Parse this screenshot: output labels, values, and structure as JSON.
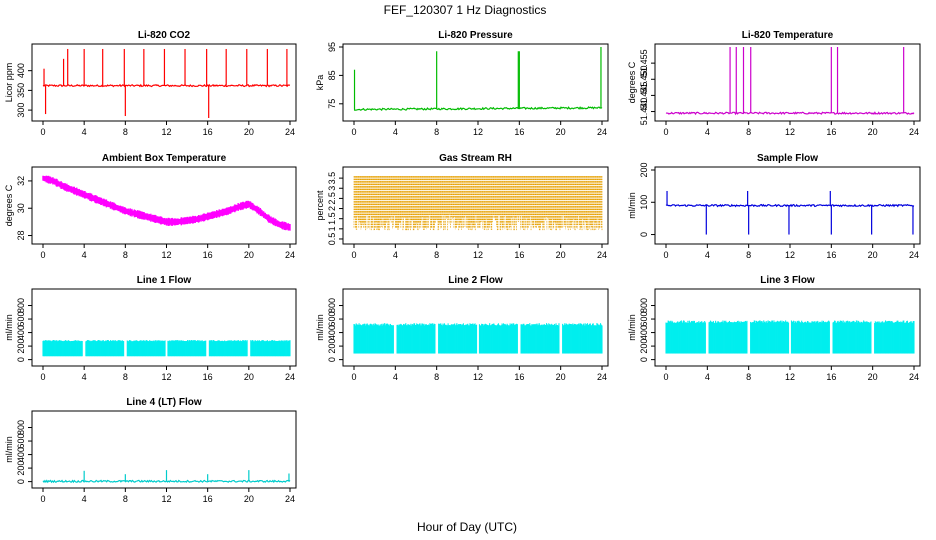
{
  "figure": {
    "title": "FEF_120307  1 Hz Diagnostics",
    "xlabel": "Hour of Day (UTC)"
  },
  "chart_data": [
    {
      "type": "line",
      "title": "Li-820 CO2",
      "ylabel": "Licor ppm",
      "color": "#ff0000",
      "xlim": [
        0,
        24
      ],
      "ylim": [
        280,
        460
      ],
      "xticks": [
        0,
        4,
        8,
        12,
        16,
        20,
        24
      ],
      "yticks": [
        300,
        350,
        400
      ],
      "baseline": 362,
      "spikes": [
        {
          "x": 0.1,
          "y": 405
        },
        {
          "x": 0.25,
          "y": 290
        },
        {
          "x": 2.0,
          "y": 430
        },
        {
          "x": 2.4,
          "y": 455
        },
        {
          "x": 4.0,
          "y": 455
        },
        {
          "x": 5.8,
          "y": 455
        },
        {
          "x": 7.9,
          "y": 455
        },
        {
          "x": 8.0,
          "y": 285
        },
        {
          "x": 9.8,
          "y": 455
        },
        {
          "x": 11.8,
          "y": 455
        },
        {
          "x": 13.8,
          "y": 455
        },
        {
          "x": 15.9,
          "y": 455
        },
        {
          "x": 16.1,
          "y": 280
        },
        {
          "x": 17.8,
          "y": 455
        },
        {
          "x": 19.8,
          "y": 455
        },
        {
          "x": 21.8,
          "y": 455
        },
        {
          "x": 23.7,
          "y": 455
        }
      ]
    },
    {
      "type": "line",
      "title": "Li-820 Pressure",
      "ylabel": "kPa",
      "color": "#00bb00",
      "xlim": [
        0,
        24
      ],
      "ylim": [
        70,
        95
      ],
      "xticks": [
        0,
        4,
        8,
        12,
        16,
        20,
        24
      ],
      "yticks": [
        75,
        85,
        95
      ],
      "baseline_start": 73.0,
      "baseline_end": 73.6,
      "spikes": [
        {
          "x": 0.05,
          "y": 87
        },
        {
          "x": 8.0,
          "y": 93.5
        },
        {
          "x": 15.9,
          "y": 93.5
        },
        {
          "x": 16.0,
          "y": 93.5
        },
        {
          "x": 23.9,
          "y": 95
        }
      ]
    },
    {
      "type": "line",
      "title": "Li-820 Temperature",
      "ylabel": "degrees C",
      "color": "#cc00cc",
      "xlim": [
        0,
        24
      ],
      "ylim": [
        51.438,
        51.46
      ],
      "xticks": [
        0,
        4,
        8,
        12,
        16,
        20,
        24
      ],
      "yticks": [
        51.44,
        51.445,
        51.45,
        51.455
      ],
      "ytick_labels": [
        "51.440",
        "51.445",
        "51.450",
        "51.455"
      ],
      "baseline": 51.4395,
      "spikes": [
        {
          "x": 6.2,
          "y": 51.46
        },
        {
          "x": 6.8,
          "y": 51.46
        },
        {
          "x": 7.5,
          "y": 51.46
        },
        {
          "x": 8.2,
          "y": 51.46
        },
        {
          "x": 16.0,
          "y": 51.46
        },
        {
          "x": 16.6,
          "y": 51.46
        },
        {
          "x": 23.0,
          "y": 51.46
        }
      ]
    },
    {
      "type": "band",
      "title": "Ambient Box Temperature",
      "ylabel": "degrees C",
      "color": "#ff00ff",
      "xlim": [
        0,
        24
      ],
      "ylim": [
        27.6,
        32.8
      ],
      "xticks": [
        0,
        4,
        8,
        12,
        16,
        20,
        24
      ],
      "yticks": [
        28,
        30,
        32
      ],
      "x": [
        0,
        1,
        2,
        3,
        4,
        5,
        6,
        7,
        8,
        9,
        10,
        11,
        12,
        13,
        14,
        15,
        16,
        17,
        18,
        19,
        20,
        21,
        22,
        23,
        24
      ],
      "y": [
        32.2,
        32.0,
        31.6,
        31.3,
        31.0,
        30.7,
        30.4,
        30.1,
        29.8,
        29.6,
        29.4,
        29.2,
        29.0,
        29.0,
        29.1,
        29.2,
        29.4,
        29.6,
        29.8,
        30.1,
        30.3,
        29.8,
        29.2,
        28.8,
        28.6
      ],
      "band_half_width": 0.3
    },
    {
      "type": "band",
      "title": "Gas Stream RH",
      "ylabel": "percent",
      "color": "#e6a000",
      "xlim": [
        0,
        24
      ],
      "ylim": [
        0.4,
        3.9
      ],
      "xticks": [
        0,
        4,
        8,
        12,
        16,
        20,
        24
      ],
      "yticks": [
        0.5,
        1.0,
        1.5,
        2.0,
        2.5,
        3.0,
        3.5
      ],
      "upper": 3.6,
      "lower": 0.9,
      "dense": true
    },
    {
      "type": "line",
      "title": "Sample Flow",
      "ylabel": "ml/min",
      "color": "#0000dd",
      "xlim": [
        0,
        24
      ],
      "ylim": [
        -20,
        200
      ],
      "xticks": [
        0,
        4,
        8,
        12,
        16,
        20,
        24
      ],
      "yticks": [
        0,
        100,
        200
      ],
      "baseline": 90,
      "spikes": [
        {
          "x": 0.1,
          "y": 135
        },
        {
          "x": 3.9,
          "y": 0
        },
        {
          "x": 7.9,
          "y": 135
        },
        {
          "x": 8.0,
          "y": 0
        },
        {
          "x": 11.9,
          "y": 0
        },
        {
          "x": 15.9,
          "y": 135
        },
        {
          "x": 16.0,
          "y": 0
        },
        {
          "x": 19.9,
          "y": 0
        },
        {
          "x": 23.9,
          "y": 0
        }
      ]
    },
    {
      "type": "band",
      "title": "Line 1 Flow",
      "ylabel": "ml/min",
      "color": "#00eeee",
      "xlim": [
        0,
        24
      ],
      "ylim": [
        -50,
        1000
      ],
      "xticks": [
        0,
        4,
        8,
        12,
        16,
        20,
        24
      ],
      "yticks": [
        0,
        200,
        400,
        600,
        800
      ],
      "upper": 290,
      "lower": 50,
      "gaps": [
        4,
        8,
        12,
        16,
        20
      ]
    },
    {
      "type": "band",
      "title": "Line 2 Flow",
      "ylabel": "ml/min",
      "color": "#00eeee",
      "xlim": [
        0,
        24
      ],
      "ylim": [
        -50,
        1000
      ],
      "xticks": [
        0,
        4,
        8,
        12,
        16,
        20,
        24
      ],
      "yticks": [
        0,
        200,
        400,
        600,
        800
      ],
      "upper": 540,
      "lower": 90,
      "gaps": [
        4,
        8,
        12,
        16,
        20
      ]
    },
    {
      "type": "band",
      "title": "Line 3 Flow",
      "ylabel": "ml/min",
      "color": "#00eeee",
      "xlim": [
        0,
        24
      ],
      "ylim": [
        -50,
        1000
      ],
      "xticks": [
        0,
        4,
        8,
        12,
        16,
        20,
        24
      ],
      "yticks": [
        0,
        200,
        400,
        600,
        800
      ],
      "upper": 580,
      "lower": 90,
      "gaps": [
        4,
        8,
        12,
        16,
        20
      ]
    },
    {
      "type": "line",
      "title": "Line 4 (LT) Flow",
      "ylabel": "ml/min",
      "color": "#00cccc",
      "xlim": [
        0,
        24
      ],
      "ylim": [
        -50,
        1000
      ],
      "xticks": [
        0,
        4,
        8,
        12,
        16,
        20,
        24
      ],
      "yticks": [
        0,
        200,
        400,
        600,
        800
      ],
      "baseline": 5,
      "spikes": [
        {
          "x": 4.0,
          "y": 160
        },
        {
          "x": 8.0,
          "y": 110
        },
        {
          "x": 12.0,
          "y": 170
        },
        {
          "x": 16.0,
          "y": 110
        },
        {
          "x": 20.0,
          "y": 170
        },
        {
          "x": 23.9,
          "y": 120
        }
      ]
    }
  ]
}
